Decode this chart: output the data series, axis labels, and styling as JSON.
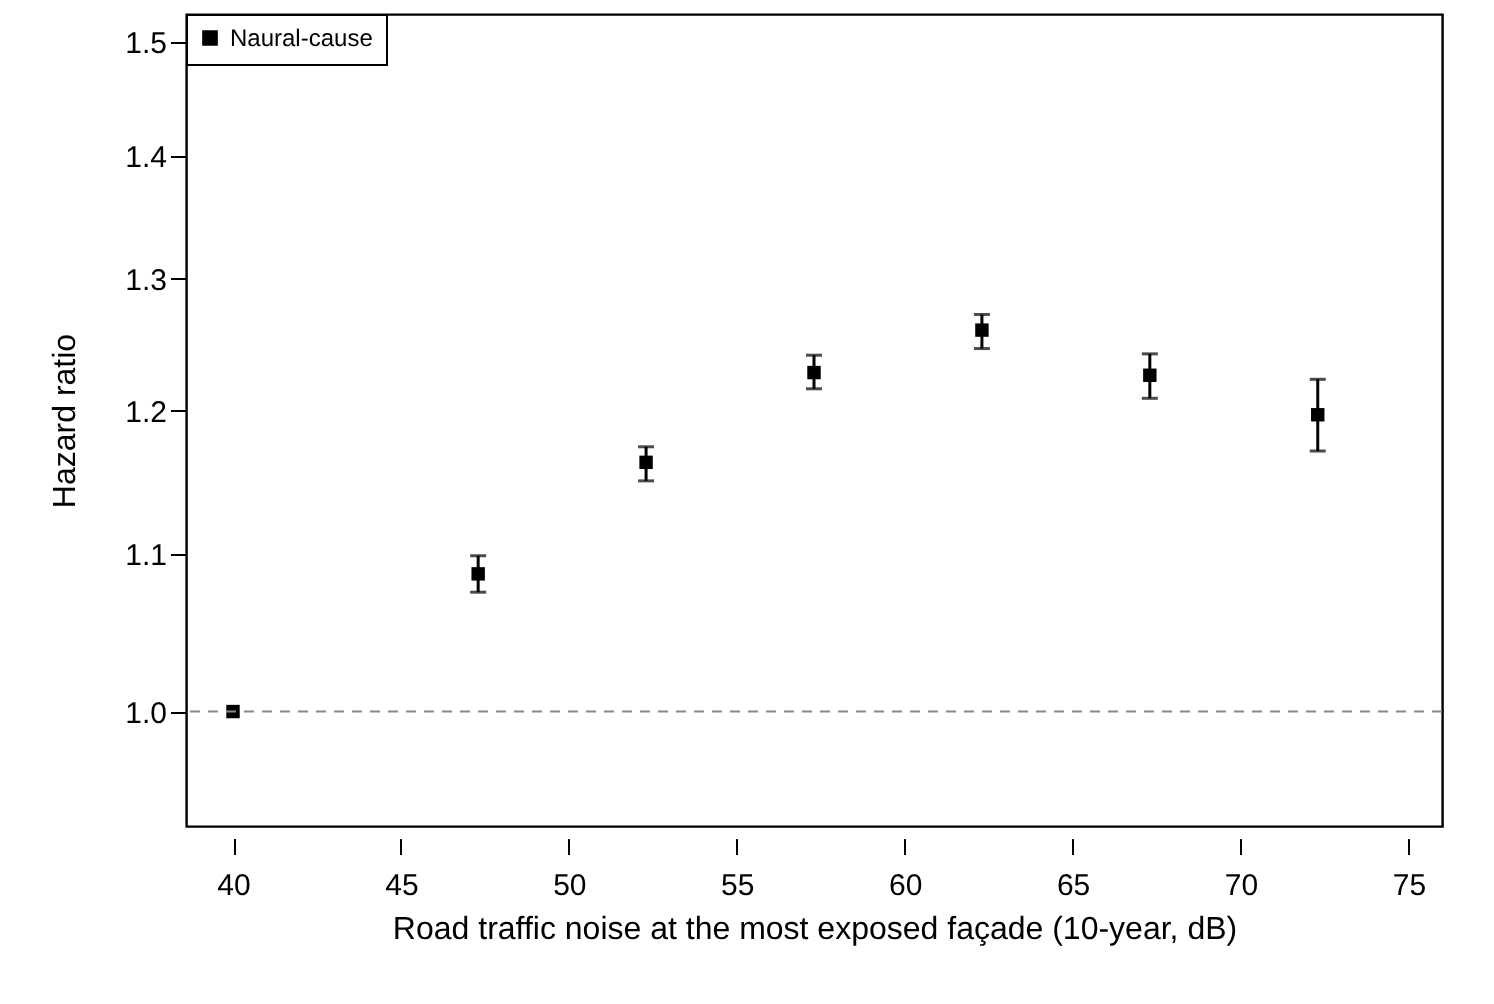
{
  "chart_data": {
    "type": "scatter",
    "xlabel": "Road traffic noise at the most exposed façade (10-year, dB)",
    "ylabel": "Hazard ratio",
    "x": [
      40,
      47.3,
      52.3,
      57.3,
      62.3,
      67.3,
      72.3
    ],
    "series": [
      {
        "name": "Naural-cause",
        "color": "#000000",
        "values": [
          1.0,
          1.087,
          1.163,
          1.228,
          1.26,
          1.226,
          1.197
        ],
        "errors": [
          null,
          [
            1.075,
            1.099
          ],
          [
            1.15,
            1.174
          ],
          [
            1.216,
            1.241
          ],
          [
            1.246,
            1.272
          ],
          [
            1.209,
            1.242
          ],
          [
            1.171,
            1.223
          ]
        ]
      }
    ],
    "xlim": [
      38.6,
      76
    ],
    "xticks": [
      40,
      45,
      50,
      55,
      60,
      65,
      70,
      75
    ],
    "ylim": [
      0.933,
      1.526
    ],
    "yticks": [
      {
        "value": 1.0,
        "label": "1.0"
      },
      1.1,
      1.2,
      1.3,
      1.4,
      1.5
    ],
    "log": "y",
    "grid": false,
    "legend": "top left",
    "marker": "square",
    "ref_lines": [
      {
        "axis": "y",
        "value": 1.0,
        "color": "#888888",
        "line_style": "dashed"
      }
    ]
  }
}
